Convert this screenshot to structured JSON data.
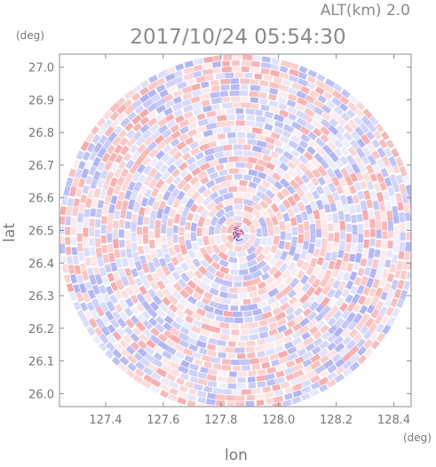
{
  "header": {
    "altitude_label": "ALT(km) 2.0",
    "timestamp": "2017/10/24 05:54:30"
  },
  "axes": {
    "y_unit": "(deg)",
    "x_unit": "(deg)",
    "xlabel": "lon",
    "ylabel": "lat",
    "x_ticks": [
      "127.4",
      "127.6",
      "127.8",
      "128.0",
      "128.2",
      "128.4"
    ],
    "y_ticks": [
      "27.0",
      "26.9",
      "26.8",
      "26.7",
      "26.6",
      "26.5",
      "26.4",
      "26.3",
      "26.2",
      "26.1",
      "26.0"
    ]
  },
  "chart_data": {
    "type": "heatmap",
    "title": "2017/10/24 05:54:30",
    "subtitle": "ALT(km) 2.0",
    "xlabel": "lon",
    "ylabel": "lat",
    "xlim": [
      127.24,
      128.46
    ],
    "ylim": [
      25.96,
      27.04
    ],
    "x_ticks": [
      127.4,
      127.6,
      127.8,
      128.0,
      128.2,
      128.4
    ],
    "y_ticks": [
      26.0,
      26.1,
      26.2,
      26.3,
      26.4,
      26.5,
      26.6,
      26.7,
      26.8,
      26.9,
      27.0
    ],
    "radar_center": {
      "lon": 127.86,
      "lat": 26.49
    },
    "coverage_radius_deg_lat": 0.55,
    "colormap": {
      "positive": "#f4b6b6",
      "negative": "#b6baf2",
      "zero": "#ffffff"
    },
    "grid": false
  }
}
